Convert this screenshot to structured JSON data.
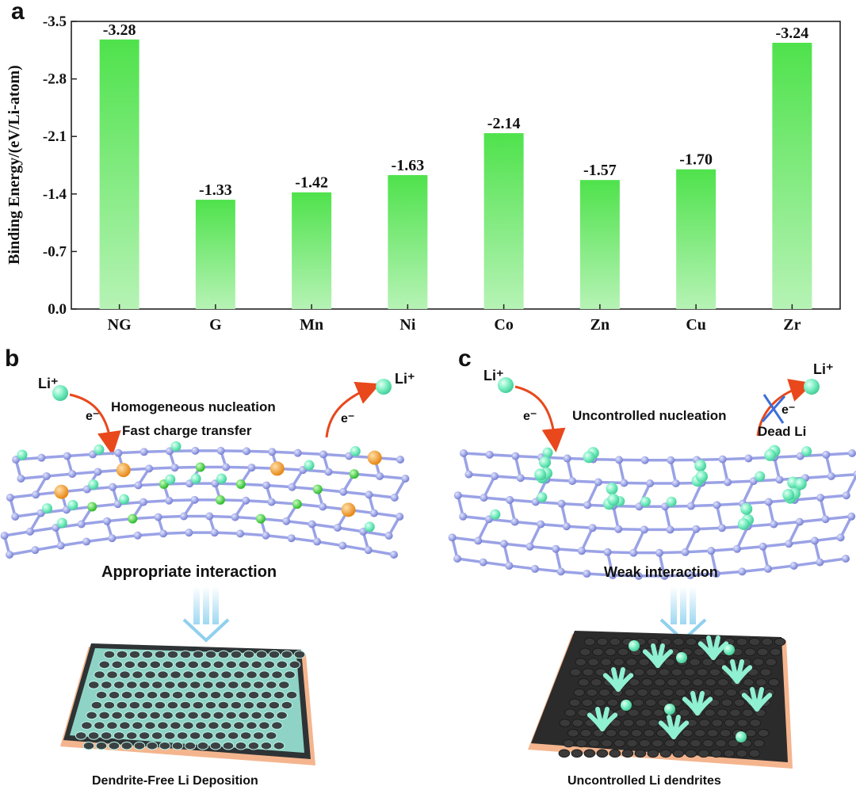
{
  "panels": {
    "a": "a",
    "b": "b",
    "c": "c"
  },
  "chart_data": {
    "type": "bar",
    "categories": [
      "NG",
      "G",
      "Mn",
      "Ni",
      "Co",
      "Zn",
      "Cu",
      "Zr"
    ],
    "values": [
      -3.28,
      -1.33,
      -1.42,
      -1.63,
      -2.14,
      -1.57,
      -1.7,
      -3.24
    ],
    "value_labels": [
      "-3.28",
      "-1.33",
      "-1.42",
      "-1.63",
      "-2.14",
      "-1.57",
      "-1.70",
      "-3.24"
    ],
    "ylabel": "Binding Energy/(eV/Li-atom)",
    "ylim": [
      0.0,
      -3.5
    ],
    "yticks": [
      "0.0",
      "-0.7",
      "-1.4",
      "-2.1",
      "-2.8",
      "-3.5"
    ],
    "ytick_values": [
      0.0,
      -0.7,
      -1.4,
      -2.1,
      -2.8,
      -3.5
    ],
    "axis_inverted": true,
    "bar_color_top": "#4fe24c",
    "bar_color_bottom": "#a8f0a6",
    "grid": false
  },
  "diagram_b": {
    "li_left": "Li⁺",
    "li_right": "Li⁺",
    "e_left": "e⁻",
    "e_right": "e⁻",
    "text_line1": "Homogeneous  nucleation",
    "text_line2": "Fast charge transfer",
    "interaction": "Appropriate interaction",
    "caption": "Dendrite-Free  Li Deposition"
  },
  "diagram_c": {
    "li_left": "Li⁺",
    "li_right": "Li⁺",
    "e_left": "e⁻",
    "e_right": "e⁻",
    "nucleation": "Uncontrolled nucleation",
    "dead": "Dead Li",
    "interaction": "Weak interaction",
    "caption": "Uncontrolled Li dendrites"
  },
  "colors": {
    "carbon": "#8f97e0",
    "lithium": "#7ef0c4",
    "metal_orange": "#f49a1a",
    "metal_green": "#2fd12f",
    "arrow": "#e8481c",
    "substrate": "#f4b58e"
  }
}
